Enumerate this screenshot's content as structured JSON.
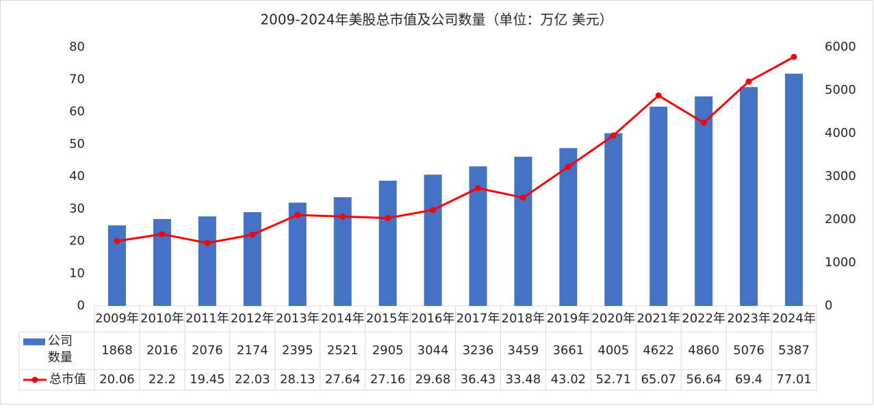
{
  "chart_data": {
    "type": "bar-line",
    "title": "2009-2024年美股总市值及公司数量（单位：万亿 美元）",
    "categories": [
      "2009年",
      "2010年",
      "2011年",
      "2012年",
      "2013年",
      "2014年",
      "2015年",
      "2016年",
      "2017年",
      "2018年",
      "2019年",
      "2020年",
      "2021年",
      "2022年",
      "2023年",
      "2024年"
    ],
    "series": [
      {
        "name": "公司数量",
        "type": "bar",
        "axis": "y2",
        "color": "#4472c4",
        "values": [
          1868,
          2016,
          2076,
          2174,
          2395,
          2521,
          2905,
          3044,
          3236,
          3459,
          3661,
          4005,
          4622,
          4860,
          5076,
          5387
        ]
      },
      {
        "name": "总市值",
        "type": "line",
        "axis": "y",
        "color": "#ff0000",
        "values": [
          20.06,
          22.2,
          19.45,
          22.03,
          28.13,
          27.64,
          27.16,
          29.68,
          36.43,
          33.48,
          43.02,
          52.71,
          65.07,
          56.64,
          69.4,
          77.01
        ]
      }
    ],
    "ylim": [
      0,
      80
    ],
    "yticks": [
      0,
      10,
      20,
      30,
      40,
      50,
      60,
      70,
      80
    ],
    "y2lim": [
      0,
      6000
    ],
    "y2ticks": [
      0,
      1000,
      2000,
      3000,
      4000,
      5000,
      6000
    ],
    "grid": false,
    "data_table": true
  }
}
